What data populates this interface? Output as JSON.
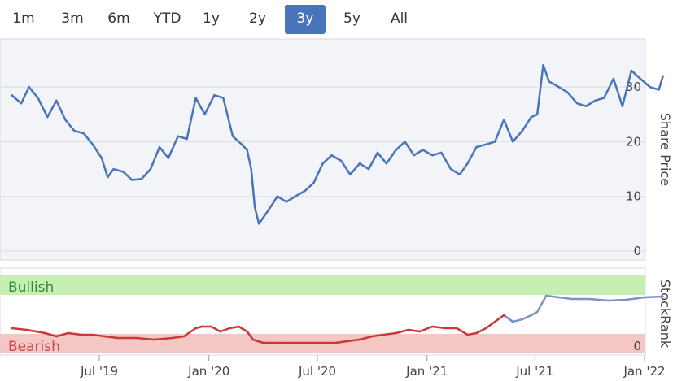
{
  "range_selector": {
    "buttons": [
      "1m",
      "3m",
      "6m",
      "YTD",
      "1y",
      "2y",
      "3y",
      "5y",
      "All"
    ],
    "active": "3y"
  },
  "colors": {
    "price_line": "#4a74b9",
    "bullish_zone": "#c6efb3",
    "bearish_zone": "#f4c6c4",
    "bullish_text": "#3b8a3b",
    "bearish_text": "#c9474b",
    "rank_red": "#cc3838",
    "rank_blue": "#7a95c0"
  },
  "chart_data": [
    {
      "type": "line",
      "title": "",
      "ylabel": "Share Price",
      "ylim": [
        0,
        35
      ],
      "y_ticks": [
        "0",
        "10",
        "20",
        "30"
      ],
      "series": [
        {
          "x": [
            "2019-02-04",
            "2019-02-20",
            "2019-03-05",
            "2019-03-20",
            "2019-04-05",
            "2019-04-20",
            "2019-05-05",
            "2019-05-20",
            "2019-06-05",
            "2019-06-20",
            "2019-07-05",
            "2019-07-15",
            "2019-07-25",
            "2019-08-10",
            "2019-08-25",
            "2019-09-10",
            "2019-09-25",
            "2019-10-10",
            "2019-10-25",
            "2019-11-10",
            "2019-11-25",
            "2019-12-10",
            "2019-12-25",
            "2020-01-10",
            "2020-01-25",
            "2020-02-10",
            "2020-02-25",
            "2020-03-05",
            "2020-03-12",
            "2020-03-18",
            "2020-03-25",
            "2020-04-10",
            "2020-04-25",
            "2020-05-10",
            "2020-05-25",
            "2020-06-10",
            "2020-06-25",
            "2020-07-10",
            "2020-07-25",
            "2020-08-10",
            "2020-08-25",
            "2020-09-10",
            "2020-09-25",
            "2020-10-10",
            "2020-10-25",
            "2020-11-10",
            "2020-11-25",
            "2020-12-10",
            "2020-12-25",
            "2021-01-10",
            "2021-01-25",
            "2021-02-10",
            "2021-02-25",
            "2021-03-10",
            "2021-03-25",
            "2021-04-10",
            "2021-04-25",
            "2021-05-10",
            "2021-05-25",
            "2021-06-10",
            "2021-06-25",
            "2021-07-05",
            "2021-07-15",
            "2021-07-25",
            "2021-08-10",
            "2021-08-25",
            "2021-09-10",
            "2021-09-25",
            "2021-10-10",
            "2021-10-25",
            "2021-11-10",
            "2021-11-25",
            "2021-12-10",
            "2021-12-25",
            "2022-01-10",
            "2022-01-25",
            "2022-02-01"
          ],
          "y": [
            28.5,
            27.0,
            30.0,
            28.0,
            24.5,
            27.5,
            24.0,
            22.0,
            21.5,
            19.5,
            17.0,
            13.5,
            15.0,
            14.5,
            13.0,
            13.2,
            15.0,
            19.0,
            17.0,
            21.0,
            20.5,
            28.0,
            25.0,
            28.5,
            28.0,
            21.0,
            19.5,
            18.5,
            15.0,
            8.0,
            5.0,
            7.5,
            10.0,
            9.0,
            10.0,
            11.0,
            12.5,
            16.0,
            17.5,
            16.5,
            14.0,
            16.0,
            15.0,
            18.0,
            16.0,
            18.5,
            20.0,
            17.5,
            18.5,
            17.5,
            18.0,
            15.0,
            14.0,
            16.0,
            19.0,
            19.5,
            20.0,
            24.0,
            20.0,
            22.0,
            24.5,
            25.0,
            34.0,
            31.0,
            30.0,
            29.0,
            27.0,
            26.5,
            27.5,
            28.0,
            31.5,
            26.5,
            33.0,
            31.5,
            30.0,
            29.5,
            32.0
          ]
        }
      ]
    },
    {
      "type": "line",
      "title": "",
      "ylabel": "StockRank",
      "ylim": [
        0,
        100
      ],
      "y_ticks": [
        "0"
      ],
      "zones": [
        "Bullish",
        "Bearish"
      ],
      "x_ticks": [
        "Jul '19",
        "Jan '20",
        "Jul '20",
        "Jan '21",
        "Jul '21",
        "Jan '22"
      ],
      "series": [
        {
          "x": [
            "2019-02-04",
            "2019-03-01",
            "2019-04-01",
            "2019-04-20",
            "2019-05-10",
            "2019-06-01",
            "2019-06-20",
            "2019-07-10",
            "2019-08-01",
            "2019-09-01",
            "2019-10-01",
            "2019-11-01",
            "2019-11-20",
            "2019-12-10",
            "2019-12-20",
            "2020-01-05",
            "2020-01-20",
            "2020-02-05",
            "2020-02-20",
            "2020-03-05",
            "2020-03-15",
            "2020-04-01",
            "2020-05-01",
            "2020-06-01",
            "2020-07-01",
            "2020-08-01",
            "2020-08-20",
            "2020-09-10",
            "2020-10-01",
            "2020-10-20",
            "2020-11-10",
            "2020-12-01",
            "2020-12-20",
            "2021-01-10",
            "2021-02-01",
            "2021-02-20",
            "2021-03-10",
            "2021-03-25",
            "2021-04-10",
            "2021-04-25",
            "2021-05-10",
            "2021-05-25",
            "2021-06-10",
            "2021-06-25",
            "2021-07-05",
            "2021-07-20",
            "2021-08-10",
            "2021-09-01",
            "2021-10-01",
            "2021-11-01",
            "2021-12-01",
            "2022-01-01",
            "2022-02-01"
          ],
          "y": [
            24,
            22,
            18,
            14,
            18,
            16,
            16,
            14,
            12,
            12,
            10,
            12,
            14,
            24,
            26,
            26,
            20,
            24,
            26,
            20,
            10,
            6,
            6,
            6,
            6,
            6,
            8,
            10,
            14,
            16,
            18,
            22,
            20,
            26,
            24,
            24,
            16,
            18,
            24,
            32,
            40,
            32,
            35,
            40,
            44,
            64,
            62,
            60,
            60,
            58,
            59,
            62,
            63
          ]
        }
      ]
    }
  ]
}
